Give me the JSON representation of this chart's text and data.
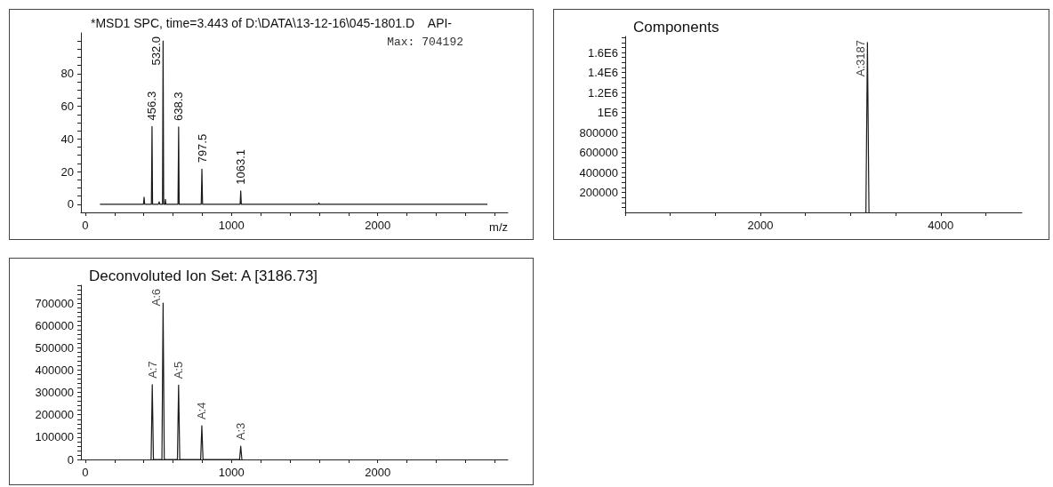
{
  "chart_data": [
    {
      "type": "line",
      "title": "*MSD1 SPC, time=3.443 of D:\\DATA\\13-12-16\\045-1801.D    API-",
      "xlabel": "m/z",
      "color": "#1a1a1a",
      "marker": "none",
      "x": [
        100,
        398,
        402,
        406,
        452,
        456.3,
        460,
        500,
        505,
        510,
        528,
        532,
        536,
        545,
        548,
        551,
        634,
        638.3,
        642,
        793,
        797.5,
        802,
        1059,
        1063.1,
        1067,
        1595,
        1598,
        1601,
        2750
      ],
      "values": [
        0,
        0,
        4.4,
        0,
        0,
        47.6,
        0,
        0,
        1.5,
        0,
        0,
        100,
        0,
        0,
        3,
        0,
        0,
        47.3,
        0,
        0,
        21.5,
        0,
        0,
        8.2,
        0,
        0,
        0.8,
        0,
        0
      ],
      "xlim": [
        -30,
        2890
      ],
      "xticks": [
        0,
        {
          "value": 200,
          "label": null
        },
        {
          "value": 400,
          "label": null
        },
        {
          "value": 600,
          "label": null
        },
        {
          "value": 800,
          "label": null
        },
        1000,
        {
          "value": 1200,
          "label": null
        },
        {
          "value": 1400,
          "label": null
        },
        {
          "value": 1600,
          "label": null
        },
        {
          "value": 1800,
          "label": null
        },
        2000,
        {
          "value": 2200,
          "label": null
        },
        {
          "value": 2400,
          "label": null
        },
        {
          "value": 2600,
          "label": null
        },
        {
          "value": 2800,
          "label": null
        }
      ],
      "ylim": [
        -5,
        105
      ],
      "yticks": [
        0,
        {
          "value": 5,
          "label": null
        },
        {
          "value": 10,
          "label": null
        },
        {
          "value": 15,
          "label": null
        },
        20,
        {
          "value": 25,
          "label": null
        },
        {
          "value": 30,
          "label": null
        },
        {
          "value": 35,
          "label": null
        },
        40,
        {
          "value": 45,
          "label": null
        },
        {
          "value": 50,
          "label": null
        },
        {
          "value": 55,
          "label": null
        },
        60,
        {
          "value": 65,
          "label": null
        },
        {
          "value": 70,
          "label": null
        },
        {
          "value": 75,
          "label": null
        },
        80,
        {
          "value": 85,
          "label": null
        },
        {
          "value": 90,
          "label": null
        },
        {
          "value": 95,
          "label": null
        },
        {
          "value": 100,
          "label": null
        }
      ],
      "annotations": [
        "Max: 704192",
        {
          "text": "456.3",
          "x": 456.3,
          "y": 47.6
        },
        {
          "text": "532.0",
          "x": 532,
          "y": 100
        },
        {
          "text": "638.3",
          "x": 638.3,
          "y": 47.3
        },
        {
          "text": "797.5",
          "x": 797.5,
          "y": 21.5
        },
        {
          "text": "1063.1",
          "x": 1063.1,
          "y": 8.2
        }
      ]
    },
    {
      "type": "line",
      "title": "Components",
      "color": "#1a1a1a",
      "marker": "none",
      "x": [
        3170,
        3187,
        3204
      ],
      "values": [
        0,
        1700000,
        0
      ],
      "xlim": [
        500,
        4900
      ],
      "xticks": [
        {
          "value": 500,
          "label": null
        },
        {
          "value": 1000,
          "label": null
        },
        {
          "value": 1500,
          "label": null
        },
        2000,
        {
          "value": 2500,
          "label": null
        },
        {
          "value": 3000,
          "label": null
        },
        {
          "value": 3500,
          "label": null
        },
        4000,
        {
          "value": 4500,
          "label": null
        }
      ],
      "ylim": [
        0,
        1760000
      ],
      "yticks": [
        {
          "value": 50000,
          "label": null
        },
        {
          "value": 100000,
          "label": null
        },
        {
          "value": 150000,
          "label": null
        },
        200000,
        {
          "value": 250000,
          "label": null
        },
        {
          "value": 300000,
          "label": null
        },
        {
          "value": 350000,
          "label": null
        },
        400000,
        {
          "value": 450000,
          "label": null
        },
        {
          "value": 500000,
          "label": null
        },
        {
          "value": 550000,
          "label": null
        },
        600000,
        {
          "value": 650000,
          "label": null
        },
        {
          "value": 700000,
          "label": null
        },
        {
          "value": 750000,
          "label": null
        },
        800000,
        {
          "value": 850000,
          "label": null
        },
        {
          "value": 900000,
          "label": null
        },
        {
          "value": 950000,
          "label": null
        },
        {
          "value": 1000000,
          "label": "1E6"
        },
        {
          "value": 1050000,
          "label": null
        },
        {
          "value": 1100000,
          "label": null
        },
        {
          "value": 1150000,
          "label": null
        },
        {
          "value": 1200000,
          "label": "1.2E6"
        },
        {
          "value": 1250000,
          "label": null
        },
        {
          "value": 1300000,
          "label": null
        },
        {
          "value": 1350000,
          "label": null
        },
        {
          "value": 1400000,
          "label": "1.4E6"
        },
        {
          "value": 1450000,
          "label": null
        },
        {
          "value": 1500000,
          "label": null
        },
        {
          "value": 1550000,
          "label": null
        },
        {
          "value": 1600000,
          "label": "1.6E6"
        },
        {
          "value": 1650000,
          "label": null
        },
        {
          "value": 1700000,
          "label": null
        },
        {
          "value": 1750000,
          "label": null
        }
      ],
      "annotations": [
        {
          "text": "A:3187",
          "x": 3187,
          "y": 1700000
        }
      ]
    },
    {
      "type": "line",
      "title": "Deconvoluted Ion Set: A [3186.73]",
      "color": "#1a1a1a",
      "marker": "none",
      "x": [
        450,
        458,
        466,
        524,
        532,
        540,
        630,
        638,
        646,
        789,
        797,
        805,
        1055,
        1063,
        1071
      ],
      "values": [
        0,
        335000,
        0,
        0,
        700000,
        0,
        0,
        333000,
        0,
        0,
        151000,
        0,
        0,
        59000,
        0
      ],
      "xlim": [
        -30,
        2890
      ],
      "xticks": [
        0,
        {
          "value": 200,
          "label": null
        },
        {
          "value": 400,
          "label": null
        },
        {
          "value": 600,
          "label": null
        },
        {
          "value": 800,
          "label": null
        },
        1000,
        {
          "value": 1200,
          "label": null
        },
        {
          "value": 1400,
          "label": null
        },
        {
          "value": 1600,
          "label": null
        },
        {
          "value": 1800,
          "label": null
        },
        2000,
        {
          "value": 2200,
          "label": null
        },
        {
          "value": 2400,
          "label": null
        },
        {
          "value": 2600,
          "label": null
        },
        {
          "value": 2800,
          "label": null
        }
      ],
      "ylim": [
        0,
        780000
      ],
      "yticks": [
        0,
        {
          "value": 20000,
          "label": null
        },
        {
          "value": 40000,
          "label": null
        },
        {
          "value": 60000,
          "label": null
        },
        {
          "value": 80000,
          "label": null
        },
        100000,
        {
          "value": 120000,
          "label": null
        },
        {
          "value": 140000,
          "label": null
        },
        {
          "value": 160000,
          "label": null
        },
        {
          "value": 180000,
          "label": null
        },
        200000,
        {
          "value": 220000,
          "label": null
        },
        {
          "value": 240000,
          "label": null
        },
        {
          "value": 260000,
          "label": null
        },
        {
          "value": 280000,
          "label": null
        },
        300000,
        {
          "value": 320000,
          "label": null
        },
        {
          "value": 340000,
          "label": null
        },
        {
          "value": 360000,
          "label": null
        },
        {
          "value": 380000,
          "label": null
        },
        400000,
        {
          "value": 420000,
          "label": null
        },
        {
          "value": 440000,
          "label": null
        },
        {
          "value": 460000,
          "label": null
        },
        {
          "value": 480000,
          "label": null
        },
        500000,
        {
          "value": 520000,
          "label": null
        },
        {
          "value": 540000,
          "label": null
        },
        {
          "value": 560000,
          "label": null
        },
        {
          "value": 580000,
          "label": null
        },
        600000,
        {
          "value": 620000,
          "label": null
        },
        {
          "value": 640000,
          "label": null
        },
        {
          "value": 660000,
          "label": null
        },
        {
          "value": 680000,
          "label": null
        },
        700000,
        {
          "value": 720000,
          "label": null
        },
        {
          "value": 740000,
          "label": null
        },
        {
          "value": 760000,
          "label": null
        },
        {
          "value": 780000,
          "label": null
        }
      ],
      "annotations": [
        {
          "text": "A:7",
          "x": 458,
          "y": 335000
        },
        {
          "text": "A:6",
          "x": 532,
          "y": 700000
        },
        {
          "text": "A:5",
          "x": 638,
          "y": 333000
        },
        {
          "text": "A:4",
          "x": 797,
          "y": 151000
        },
        {
          "text": "A:3",
          "x": 1063,
          "y": 59000
        }
      ]
    }
  ]
}
